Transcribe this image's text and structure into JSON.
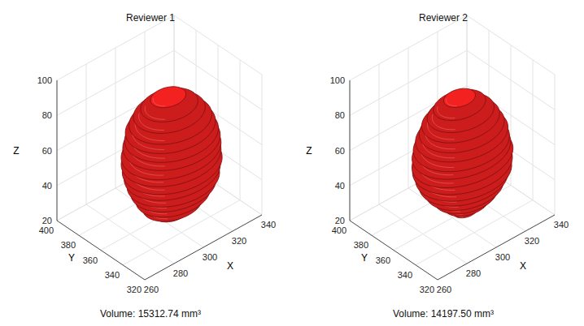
{
  "chart_data": [
    {
      "type": "surface3d",
      "title": "Reviewer 1",
      "annotation": "Volume: 15312.74 mm³",
      "xlabel": "X",
      "ylabel": "Y",
      "zlabel": "Z",
      "xlim": [
        260,
        340
      ],
      "ylim": [
        320,
        400
      ],
      "zlim": [
        20,
        100
      ],
      "xticks": [
        260,
        280,
        300,
        320,
        340
      ],
      "yticks": [
        320,
        340,
        360,
        380,
        400
      ],
      "zticks": [
        20,
        40,
        60,
        80,
        100
      ],
      "grid": true,
      "color": "#cc1c1c",
      "slices": {
        "z": [
          26,
          30,
          34,
          38,
          42,
          46,
          50,
          54,
          58,
          62,
          66,
          70,
          74,
          78,
          82,
          86
        ],
        "x": [
          302,
          303,
          304,
          305,
          305,
          305,
          305,
          305,
          305,
          306,
          306,
          306,
          306,
          306,
          306,
          306
        ],
        "y": [
          352,
          352,
          353,
          354,
          354,
          355,
          355,
          356,
          356,
          357,
          357,
          358,
          358,
          359,
          359,
          360
        ],
        "rx": [
          10,
          17,
          21,
          24,
          26,
          27,
          28,
          28,
          28,
          27,
          26,
          25,
          23,
          20,
          16,
          10
        ],
        "ry": [
          9,
          15,
          19,
          22,
          24,
          25,
          26,
          26,
          26,
          26,
          25,
          24,
          22,
          19,
          15,
          9
        ]
      }
    },
    {
      "type": "surface3d",
      "title": "Reviewer 2",
      "annotation": "Volume: 14197.50 mm³",
      "xlabel": "X",
      "ylabel": "Y",
      "zlabel": "Z",
      "xlim": [
        260,
        340
      ],
      "ylim": [
        320,
        400
      ],
      "zlim": [
        20,
        100
      ],
      "xticks": [
        260,
        280,
        300,
        320,
        340
      ],
      "yticks": [
        320,
        340,
        360,
        380,
        400
      ],
      "zticks": [
        20,
        40,
        60,
        80,
        100
      ],
      "grid": true,
      "color": "#cc1c1c",
      "slices": {
        "z": [
          26,
          30,
          34,
          38,
          42,
          46,
          50,
          54,
          58,
          62,
          66,
          70,
          74,
          78,
          82,
          86
        ],
        "x": [
          303,
          304,
          304,
          304,
          304,
          304,
          304,
          304,
          304,
          304,
          305,
          305,
          305,
          305,
          305,
          305
        ],
        "y": [
          352,
          352,
          353,
          354,
          355,
          355,
          356,
          356,
          357,
          357,
          358,
          358,
          359,
          359,
          360,
          360
        ],
        "rx": [
          7,
          13,
          18,
          22,
          25,
          27,
          28,
          29,
          28,
          27,
          26,
          24,
          22,
          19,
          15,
          9
        ],
        "ry": [
          6,
          11,
          16,
          20,
          23,
          25,
          26,
          25,
          25,
          25,
          24,
          22,
          20,
          17,
          13,
          8
        ]
      }
    }
  ]
}
